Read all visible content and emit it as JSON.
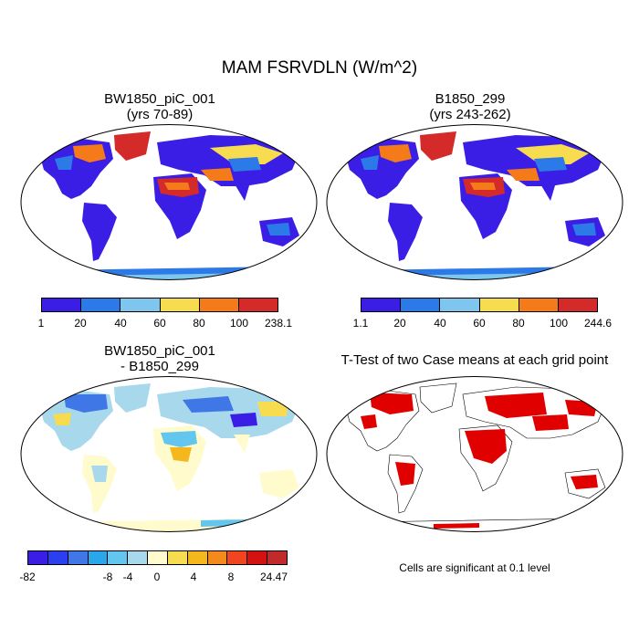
{
  "title": "MAM FSRVDLN (W/m^2)",
  "panels": [
    {
      "title_line1": "BW1850_piC_001",
      "title_line2": "(yrs 70-89)",
      "colorbar": {
        "colors": [
          "#3a1ee6",
          "#2c7ae8",
          "#7fc6ee",
          "#f7dc4f",
          "#f57a1a",
          "#d42a2a"
        ],
        "labels": [
          "1",
          "20",
          "40",
          "60",
          "80",
          "100",
          "238.1"
        ]
      }
    },
    {
      "title_line1": "B1850_299",
      "title_line2": "(yrs 243-262)",
      "colorbar": {
        "colors": [
          "#3a1ee6",
          "#2c7ae8",
          "#7fc6ee",
          "#f7dc4f",
          "#f57a1a",
          "#d42a2a"
        ],
        "labels": [
          "1.1",
          "20",
          "40",
          "60",
          "80",
          "100",
          "244.6"
        ]
      }
    },
    {
      "title_line1": "BW1850_piC_001",
      "title_line2": "- B1850_299",
      "colorbar": {
        "colors": [
          "#3a1ee6",
          "#2a3ff0",
          "#3f77e6",
          "#2aa6ea",
          "#62c6ee",
          "#a8d8ec",
          "#fffbcc",
          "#f7dc4f",
          "#f4b71c",
          "#f58a1c",
          "#f0451f",
          "#d41212",
          "#c02a2a"
        ],
        "labels": [
          "-82",
          "-8",
          "-4",
          "0",
          "4",
          "8",
          "24.47"
        ]
      }
    },
    {
      "title_line1": "T-Test of two Case means at each grid point",
      "note": "Cells are significant at 0.1 level"
    }
  ]
}
